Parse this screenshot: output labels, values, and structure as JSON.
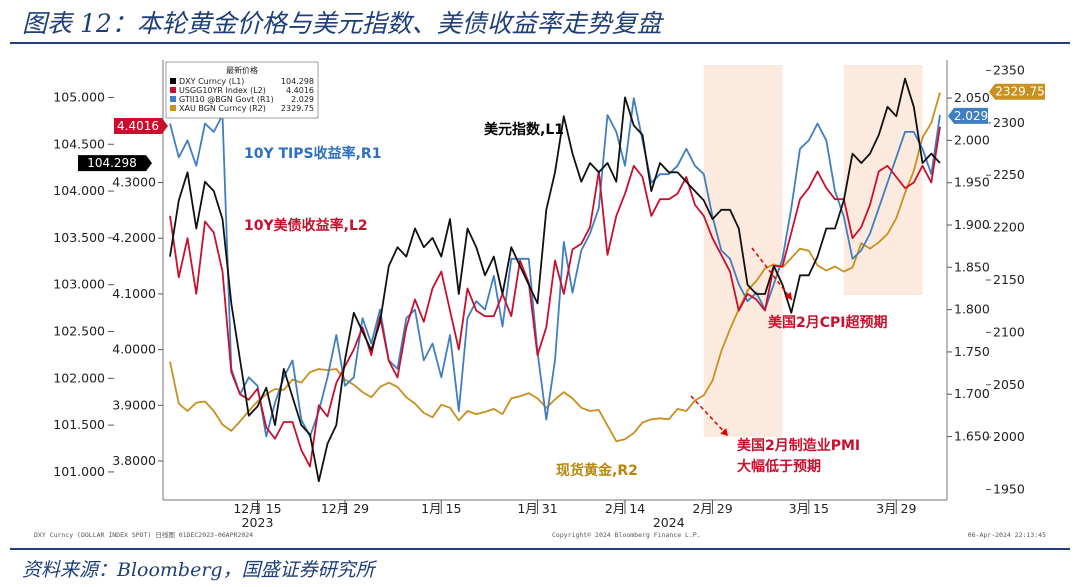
{
  "page": {
    "title": "图表 12：本轮黄金价格与美元指数、美债收益率走势复盘",
    "source": "资料来源：Bloomberg，国盛证券研究所"
  },
  "chart_data": {
    "type": "line",
    "footer_left": "DXY Curncy (DOLLAR INDEX SPOT)  日线图 01DEC2023-06APR2024",
    "footer_center": "Copyright© 2024 Bloomberg Finance L.P.",
    "footer_right": "06-Apr-2024 22:13:45",
    "legend": {
      "title": "最新价格",
      "entries": [
        {
          "label": "DXY Curncy  (L1)",
          "value": "104.298",
          "color": "#000000"
        },
        {
          "label": "USGG10YR Index  (L2)",
          "value": "4.4016",
          "color": "#c8102e"
        },
        {
          "label": "GTII10 @BGN Govt  (R1)",
          "value": "2.029",
          "color": "#3f7fc1"
        },
        {
          "label": "XAU BGN Curncy  (R2)",
          "value": "2329.75",
          "color": "#c8901e"
        }
      ]
    },
    "x_ticks": [
      {
        "t": 10,
        "label": "12月 15"
      },
      {
        "t": 20,
        "label": "12月 29"
      },
      {
        "t": 31,
        "label": "1月 15"
      },
      {
        "t": 42,
        "label": "1月 31"
      },
      {
        "t": 52,
        "label": "2月 14"
      },
      {
        "t": 62,
        "label": "2月 29"
      },
      {
        "t": 73,
        "label": "3月 15"
      },
      {
        "t": 83,
        "label": "3月 29"
      }
    ],
    "x_year_labels": [
      {
        "t": 10,
        "label": "2023"
      },
      {
        "t": 57,
        "label": "2024"
      }
    ],
    "axes": {
      "L1": {
        "range": [
          100.7,
          105.4
        ],
        "ticks": [
          "101.000",
          "101.500",
          "102.000",
          "102.500",
          "103.000",
          "103.500",
          "104.000",
          "104.500",
          "105.000"
        ]
      },
      "L2": {
        "range": [
          3.73,
          4.52
        ],
        "ticks": [
          "3.8000",
          "3.9000",
          "4.0000",
          "4.1000",
          "4.2000",
          "4.3000"
        ]
      },
      "R1": {
        "range": [
          1.575,
          2.095
        ],
        "ticks": [
          "1.650",
          "1.700",
          "1.750",
          "1.800",
          "1.850",
          "1.900",
          "1.950",
          "2.000",
          "2.050"
        ]
      },
      "R2": {
        "range": [
          1940,
          2360
        ],
        "ticks": [
          "1950",
          "2000",
          "2050",
          "2100",
          "2150",
          "2200",
          "2250",
          "2300",
          "2350"
        ]
      }
    },
    "last_value_tags": [
      {
        "axis": "L1",
        "value": 104.298,
        "label": "104.298",
        "color": "#000000"
      },
      {
        "axis": "L2",
        "value": 4.4016,
        "label": "4.4016",
        "color": "#c8102e"
      },
      {
        "axis": "R1",
        "value": 2.029,
        "label": "2.029",
        "color": "#3f7fc1"
      },
      {
        "axis": "R2",
        "value": 2329.75,
        "label": "2329.75",
        "color": "#c8901e"
      }
    ],
    "shaded_ranges": [
      [
        61,
        70
      ],
      [
        77,
        86
      ]
    ],
    "series": [
      {
        "name": "DXY Curncy (L1)",
        "axis": "L1",
        "color": "#111111",
        "values": [
          103.3,
          103.9,
          104.2,
          103.6,
          104.1,
          104.0,
          103.7,
          102.8,
          102.2,
          101.6,
          101.7,
          101.9,
          101.5,
          102.1,
          101.8,
          101.5,
          101.4,
          100.9,
          101.3,
          101.5,
          102.2,
          102.7,
          102.5,
          102.3,
          102.6,
          103.2,
          103.4,
          103.3,
          103.6,
          103.4,
          103.5,
          103.3,
          103.7,
          102.9,
          103.6,
          103.4,
          103.1,
          103.3,
          102.9,
          103.4,
          103.2,
          103.0,
          102.8,
          103.8,
          104.2,
          104.8,
          104.4,
          104.1,
          104.3,
          104.2,
          104.3,
          104.1,
          105.0,
          104.7,
          104.6,
          104.0,
          104.3,
          104.2,
          104.2,
          104.1,
          104.0,
          103.9,
          103.7,
          103.8,
          103.8,
          103.6,
          103.0,
          102.9,
          102.9,
          103.2,
          103.0,
          102.7,
          103.1,
          103.1,
          103.3,
          103.6,
          103.6,
          103.9,
          104.4,
          104.3,
          104.4,
          104.6,
          104.9,
          104.8,
          105.2,
          104.9,
          104.3,
          104.4,
          104.3
        ]
      },
      {
        "name": "USGG10YR Index (L2)",
        "axis": "L2",
        "color": "#c8102e",
        "values": [
          4.24,
          4.13,
          4.2,
          4.1,
          4.23,
          4.21,
          4.14,
          3.96,
          3.92,
          3.91,
          3.93,
          3.86,
          3.84,
          3.87,
          3.87,
          3.82,
          3.79,
          3.9,
          3.88,
          3.94,
          3.97,
          4.0,
          4.04,
          3.99,
          4.06,
          3.98,
          3.95,
          4.04,
          4.09,
          4.05,
          4.11,
          4.14,
          4.07,
          4.0,
          4.11,
          4.07,
          4.06,
          4.06,
          4.1,
          4.06,
          4.16,
          4.12,
          3.99,
          4.04,
          4.16,
          4.1,
          4.18,
          4.19,
          4.22,
          4.32,
          4.17,
          4.24,
          4.28,
          4.33,
          4.31,
          4.24,
          4.27,
          4.27,
          4.28,
          4.31,
          4.26,
          4.24,
          4.2,
          4.17,
          4.14,
          4.07,
          4.1,
          4.09,
          4.07,
          4.15,
          4.15,
          4.21,
          4.27,
          4.29,
          4.32,
          4.29,
          4.27,
          4.27,
          4.2,
          4.22,
          4.26,
          4.32,
          4.33,
          4.31,
          4.29,
          4.3,
          4.33,
          4.3,
          4.4
        ]
      },
      {
        "name": "GTII10 @BGN Govt (R1)",
        "axis": "R1",
        "color": "#3f7fc1",
        "values": [
          2.02,
          1.98,
          2.0,
          1.97,
          2.02,
          2.01,
          2.03,
          1.73,
          1.7,
          1.72,
          1.71,
          1.65,
          1.69,
          1.72,
          1.74,
          1.67,
          1.65,
          1.68,
          1.72,
          1.77,
          1.71,
          1.72,
          1.79,
          1.76,
          1.8,
          1.74,
          1.73,
          1.79,
          1.8,
          1.74,
          1.76,
          1.72,
          1.77,
          1.68,
          1.79,
          1.81,
          1.8,
          1.84,
          1.78,
          1.86,
          1.86,
          1.86,
          1.75,
          1.67,
          1.74,
          1.88,
          1.82,
          1.87,
          1.89,
          1.92,
          2.03,
          2.01,
          1.97,
          2.05,
          2.0,
          1.95,
          1.96,
          1.96,
          1.97,
          1.99,
          1.97,
          1.96,
          1.91,
          1.87,
          1.86,
          1.83,
          1.81,
          1.82,
          1.8,
          1.83,
          1.86,
          1.92,
          1.99,
          2.0,
          2.02,
          2.0,
          1.94,
          1.91,
          1.86,
          1.87,
          1.89,
          1.92,
          1.95,
          1.98,
          2.01,
          2.01,
          1.99,
          1.96,
          2.03
        ]
      },
      {
        "name": "XAU BGN Curncy (R2)",
        "axis": "R2",
        "color": "#c8901e",
        "values": [
          2072,
          2032,
          2025,
          2033,
          2034,
          2025,
          2012,
          2006,
          2015,
          2025,
          2034,
          2041,
          2046,
          2045,
          2055,
          2052,
          2062,
          2065,
          2064,
          2065,
          2055,
          2050,
          2043,
          2038,
          2048,
          2052,
          2048,
          2038,
          2032,
          2023,
          2019,
          2031,
          2028,
          2016,
          2025,
          2022,
          2024,
          2027,
          2022,
          2037,
          2039,
          2042,
          2037,
          2028,
          2036,
          2043,
          2037,
          2028,
          2025,
          2026,
          2011,
          1996,
          1998,
          2004,
          2014,
          2017,
          2018,
          2017,
          2027,
          2025,
          2035,
          2040,
          2054,
          2082,
          2103,
          2122,
          2140,
          2149,
          2161,
          2165,
          2162,
          2171,
          2180,
          2178,
          2164,
          2159,
          2163,
          2158,
          2162,
          2185,
          2180,
          2186,
          2194,
          2209,
          2233,
          2254,
          2286,
          2300,
          2329
        ]
      }
    ],
    "annotations": [
      {
        "text": "10Y TIPS收益率,R1",
        "color": "#2f6fbf"
      },
      {
        "text": "10Y美债收益率,L2",
        "color": "#c8102e"
      },
      {
        "text": "美元指数,L1",
        "color": "#000000"
      },
      {
        "text": "现货黄金,R2",
        "color": "#b8860b"
      },
      {
        "text": "美国2月CPI超预期",
        "color": "#c8102e"
      },
      {
        "text": "美国2月制造业PMI",
        "color": "#c8102e"
      },
      {
        "text": "大幅低于预期",
        "color": "#c8102e"
      }
    ]
  }
}
